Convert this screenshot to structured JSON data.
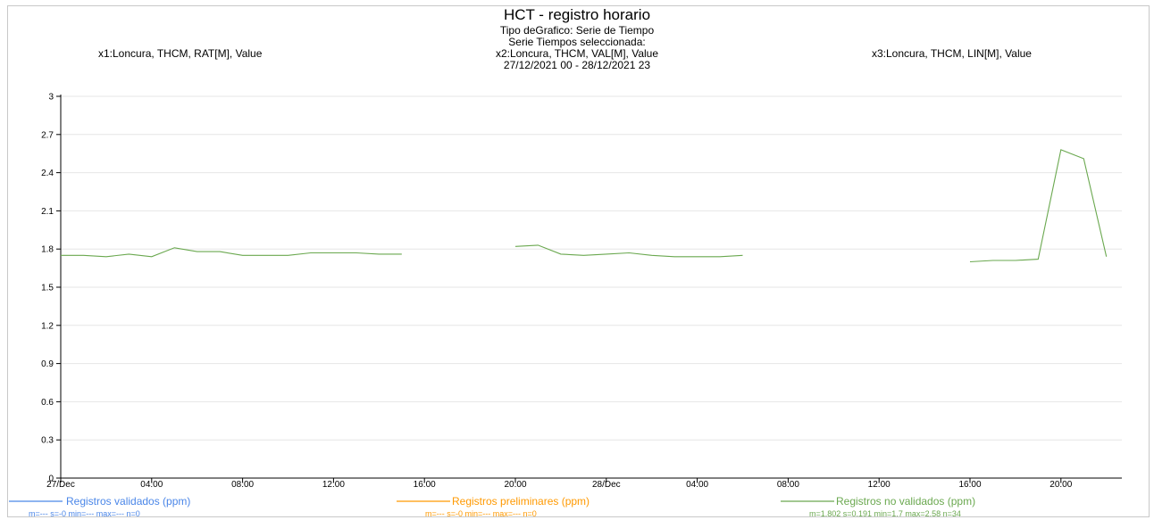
{
  "header": {
    "title": "HCT - registro horario",
    "subtitle_type": "Tipo deGrafico: Serie de Tiempo",
    "subtitle_series": "Serie Tiempos seleccionada:",
    "x1_label": "x1:Loncura, THCM, RAT[M], Value",
    "x2_label": "x2:Loncura, THCM, VAL[M], Value",
    "x3_label": "x3:Loncura, THCM, LIN[M], Value",
    "date_range": "27/12/2021 00 - 28/12/2021 23"
  },
  "colors": {
    "validados": "#4a86e8",
    "preliminares": "#ff9900",
    "no_validados": "#6aa84f",
    "grid": "#e6e6e6",
    "axis": "#000000"
  },
  "chart_data": {
    "type": "line",
    "ylim": [
      0,
      3
    ],
    "y_ticks": [
      "0",
      "0.3",
      "0.6",
      "0.9",
      "1.2",
      "1.5",
      "1.8",
      "2.1",
      "2.4",
      "2.7",
      "3"
    ],
    "x_ticks": [
      "27/Dec",
      "04:00",
      "08:00",
      "12:00",
      "16:00",
      "20:00",
      "28/Dec",
      "04:00",
      "08:00",
      "12:00",
      "16:00",
      "20:00"
    ],
    "grid": true,
    "legend_placement": "bottom",
    "series": [
      {
        "name": "Registros validados (ppm)",
        "stats": "m=--- s=-0 min=--- max=--- n=0",
        "points": []
      },
      {
        "name": "Registros preliminares (ppm)",
        "stats": "m=--- s=-0 min=--- max=--- n=0",
        "points": []
      },
      {
        "name": "Registros no validados (ppm)",
        "stats": "m=1.802 s=0.191 min=1.7 max=2.58 n=34",
        "segments": [
          [
            [
              "27/12/2021 00",
              1.75
            ],
            [
              "27/12/2021 01",
              1.75
            ],
            [
              "27/12/2021 02",
              1.74
            ],
            [
              "27/12/2021 03",
              1.76
            ],
            [
              "27/12/2021 04",
              1.74
            ],
            [
              "27/12/2021 05",
              1.81
            ],
            [
              "27/12/2021 06",
              1.78
            ],
            [
              "27/12/2021 07",
              1.78
            ],
            [
              "27/12/2021 08",
              1.75
            ],
            [
              "27/12/2021 09",
              1.75
            ],
            [
              "27/12/2021 10",
              1.75
            ],
            [
              "27/12/2021 11",
              1.77
            ],
            [
              "27/12/2021 12",
              1.77
            ],
            [
              "27/12/2021 13",
              1.77
            ],
            [
              "27/12/2021 14",
              1.76
            ],
            [
              "27/12/2021 15",
              1.76
            ]
          ],
          [
            [
              "27/12/2021 20",
              1.82
            ],
            [
              "27/12/2021 21",
              1.83
            ],
            [
              "27/12/2021 22",
              1.76
            ],
            [
              "27/12/2021 23",
              1.75
            ],
            [
              "28/12/2021 00",
              1.76
            ],
            [
              "28/12/2021 01",
              1.77
            ],
            [
              "28/12/2021 02",
              1.75
            ],
            [
              "28/12/2021 03",
              1.74
            ],
            [
              "28/12/2021 04",
              1.74
            ],
            [
              "28/12/2021 05",
              1.74
            ],
            [
              "28/12/2021 06",
              1.75
            ]
          ],
          [
            [
              "28/12/2021 16",
              1.7
            ],
            [
              "28/12/2021 17",
              1.71
            ],
            [
              "28/12/2021 18",
              1.71
            ],
            [
              "28/12/2021 19",
              1.72
            ],
            [
              "28/12/2021 20",
              2.58
            ],
            [
              "28/12/2021 21",
              2.51
            ],
            [
              "28/12/2021 22",
              1.74
            ]
          ]
        ]
      }
    ]
  }
}
